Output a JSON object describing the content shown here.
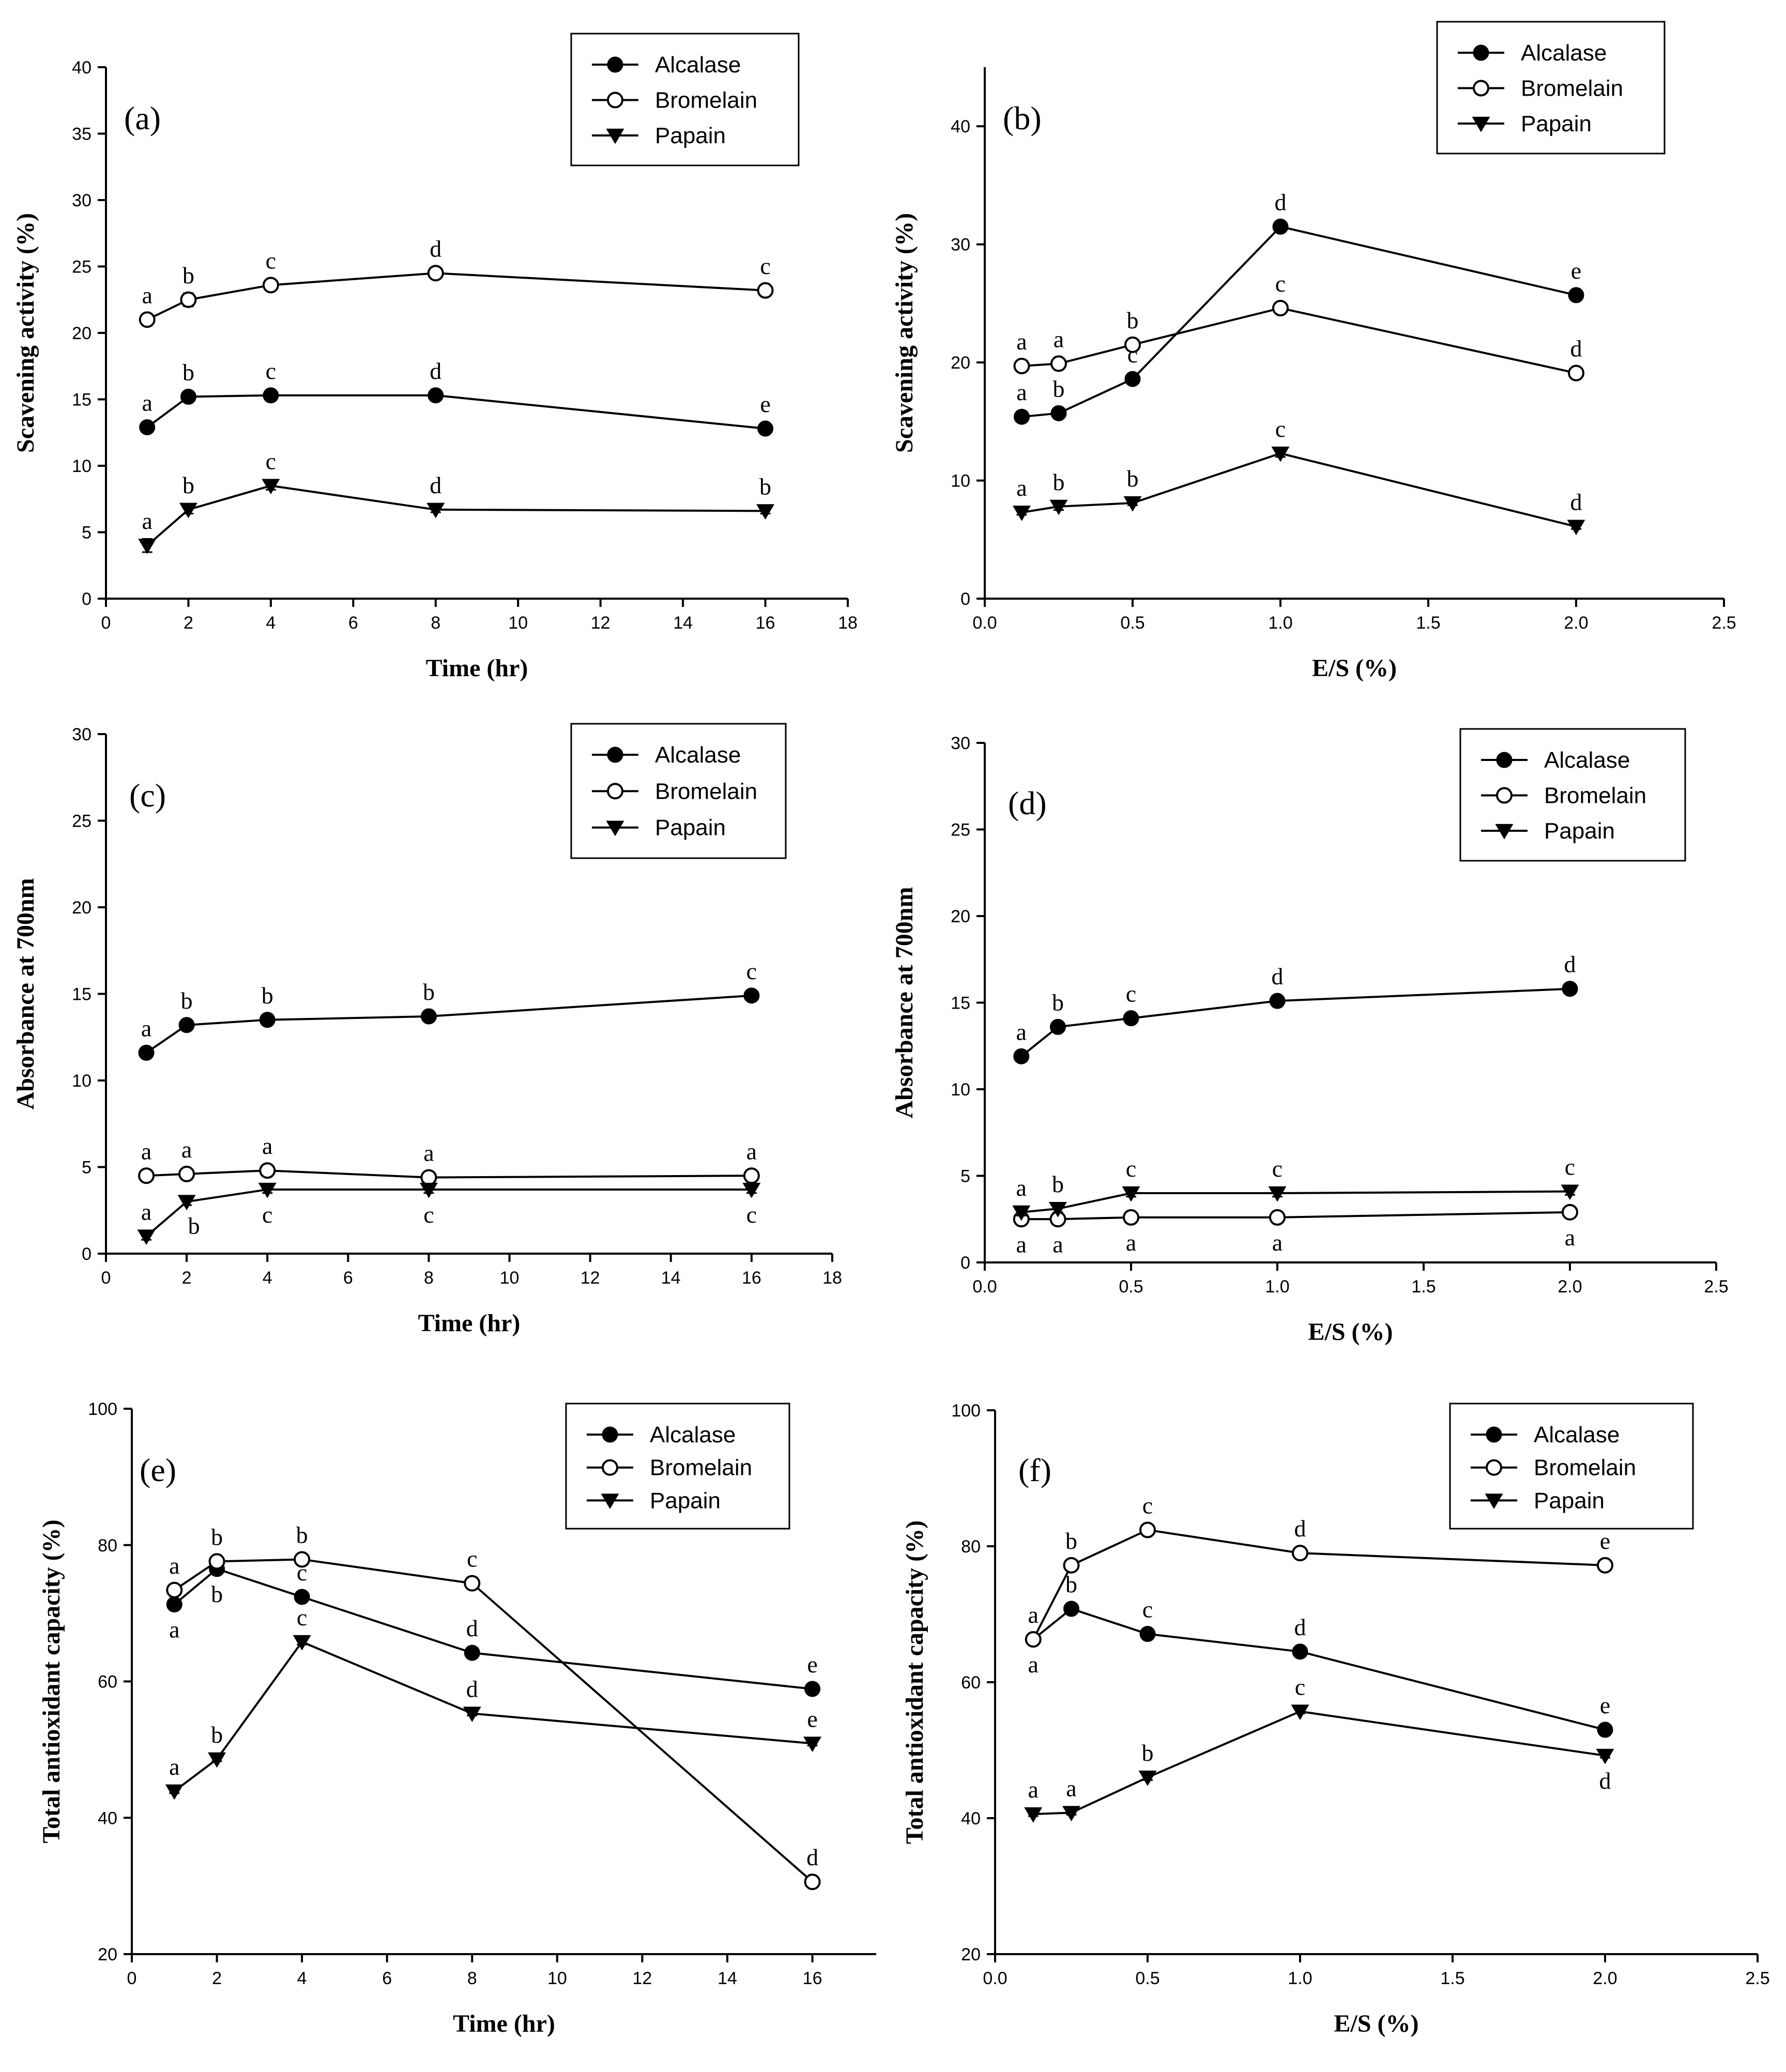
{
  "figure": {
    "legend_entries": [
      "Alcalase",
      "Bromelain",
      "Papain"
    ],
    "colors": {
      "line": "#000000",
      "background": "#ffffff"
    }
  },
  "chart_data": [
    {
      "id": "a",
      "type": "line",
      "panel_label": "(a)",
      "xlabel": "Time (hr)",
      "ylabel": "Scavening activity (%)",
      "xlim": [
        0,
        18
      ],
      "ylim": [
        0,
        40
      ],
      "xticks": [
        0,
        2,
        4,
        6,
        8,
        10,
        12,
        14,
        16,
        18
      ],
      "yticks": [
        0,
        5,
        10,
        15,
        20,
        25,
        30,
        35,
        40
      ],
      "x_decimals": 0,
      "legend_position": "top-right",
      "series": [
        {
          "name": "Alcalase",
          "marker": "filled-circle",
          "x": [
            1,
            2,
            4,
            8,
            16
          ],
          "values": [
            12.9,
            15.2,
            15.3,
            15.3,
            12.8
          ],
          "err": [
            0.3,
            0.3,
            0.2,
            0.2,
            0.2
          ],
          "labels": [
            "a",
            "b",
            "c",
            "d",
            "e"
          ],
          "label_pos": [
            "above",
            "above",
            "above",
            "above",
            "above"
          ]
        },
        {
          "name": "Bromelain",
          "marker": "open-circle",
          "x": [
            1,
            2,
            4,
            8,
            16
          ],
          "values": [
            21.0,
            22.5,
            23.6,
            24.5,
            23.2
          ],
          "err": [
            0.3,
            0.5,
            0.3,
            0.4,
            0.3
          ],
          "labels": [
            "a",
            "b",
            "c",
            "d",
            "c"
          ],
          "label_pos": [
            "above",
            "above",
            "above",
            "above",
            "above"
          ]
        },
        {
          "name": "Papain",
          "marker": "triangle-down",
          "x": [
            1,
            2,
            4,
            8,
            16
          ],
          "values": [
            4.0,
            6.7,
            8.5,
            6.7,
            6.6
          ],
          "err": [
            0.5,
            0.3,
            0.3,
            0.2,
            0.2
          ],
          "labels": [
            "a",
            "b",
            "c",
            "d",
            "b"
          ],
          "label_pos": [
            "above",
            "above",
            "above",
            "above",
            "above"
          ]
        }
      ]
    },
    {
      "id": "b",
      "type": "line",
      "panel_label": "(b)",
      "xlabel": "E/S (%)",
      "ylabel": "Scavening activity (%)",
      "xlim": [
        0,
        2.5
      ],
      "ylim": [
        0,
        45
      ],
      "xticks": [
        0.0,
        0.5,
        1.0,
        1.5,
        2.0,
        2.5
      ],
      "yticks": [
        0,
        10,
        20,
        30,
        40
      ],
      "x_decimals": 1,
      "legend_position": "top-right",
      "series": [
        {
          "name": "Alcalase",
          "marker": "filled-circle",
          "x": [
            0.125,
            0.25,
            0.5,
            1.0,
            2.0
          ],
          "values": [
            15.4,
            15.7,
            18.6,
            31.5,
            25.7
          ],
          "err": [
            0.2,
            0.2,
            0.4,
            0.2,
            0.3
          ],
          "labels": [
            "a",
            "b",
            "c",
            "d",
            "e"
          ],
          "label_pos": [
            "above",
            "above",
            "above",
            "above",
            "above"
          ]
        },
        {
          "name": "Bromelain",
          "marker": "open-circle",
          "x": [
            0.125,
            0.25,
            0.5,
            1.0,
            2.0
          ],
          "values": [
            19.7,
            19.9,
            21.5,
            24.6,
            19.1
          ],
          "err": [
            0.2,
            0.3,
            0.2,
            0.3,
            0.2
          ],
          "labels": [
            "a",
            "a",
            "b",
            "c",
            "d"
          ],
          "label_pos": [
            "above",
            "above",
            "above",
            "above",
            "above"
          ]
        },
        {
          "name": "Papain",
          "marker": "triangle-down",
          "x": [
            0.125,
            0.25,
            0.5,
            1.0,
            2.0
          ],
          "values": [
            7.3,
            7.8,
            8.1,
            12.3,
            6.1
          ],
          "err": [
            0.2,
            0.3,
            0.2,
            0.3,
            0.2
          ],
          "labels": [
            "a",
            "b",
            "b",
            "c",
            "d"
          ],
          "label_pos": [
            "above",
            "above",
            "above",
            "above",
            "above"
          ]
        }
      ]
    },
    {
      "id": "c",
      "type": "line",
      "panel_label": "(c)",
      "xlabel": "Time (hr)",
      "ylabel": "Absorbance at 700nm",
      "xlim": [
        0,
        18
      ],
      "ylim": [
        0,
        30
      ],
      "xticks": [
        0,
        2,
        4,
        6,
        8,
        10,
        12,
        14,
        16,
        18
      ],
      "yticks": [
        0,
        5,
        10,
        15,
        20,
        25,
        30
      ],
      "x_decimals": 0,
      "legend_position": "top-right",
      "series": [
        {
          "name": "Alcalase",
          "marker": "filled-circle",
          "x": [
            1,
            2,
            4,
            8,
            16
          ],
          "values": [
            11.6,
            13.2,
            13.5,
            13.7,
            14.9
          ],
          "err": [
            0.2,
            0.3,
            0.2,
            0.2,
            0.2
          ],
          "labels": [
            "a",
            "b",
            "b",
            "b",
            "c"
          ],
          "label_pos": [
            "above",
            "above",
            "above",
            "above",
            "above"
          ]
        },
        {
          "name": "Bromelain",
          "marker": "open-circle",
          "x": [
            1,
            2,
            4,
            8,
            16
          ],
          "values": [
            4.5,
            4.6,
            4.8,
            4.4,
            4.5
          ],
          "err": [
            0.2,
            0.2,
            0.2,
            0.2,
            0.2
          ],
          "labels": [
            "a",
            "a",
            "a",
            "a",
            "a"
          ],
          "label_pos": [
            "above",
            "above",
            "above",
            "above",
            "above"
          ]
        },
        {
          "name": "Papain",
          "marker": "triangle-down",
          "x": [
            1,
            2,
            4,
            8,
            16
          ],
          "values": [
            1.0,
            3.0,
            3.7,
            3.7,
            3.7
          ],
          "err": [
            0.2,
            0.2,
            0.2,
            0.2,
            0.2
          ],
          "labels": [
            "a",
            "b",
            "c",
            "c",
            "c"
          ],
          "label_pos": [
            "above",
            "right-below",
            "below",
            "below",
            "below"
          ]
        }
      ]
    },
    {
      "id": "d",
      "type": "line",
      "panel_label": "(d)",
      "xlabel": "E/S (%)",
      "ylabel": "Absorbance at 700nm",
      "xlim": [
        0,
        2.5
      ],
      "ylim": [
        0,
        30
      ],
      "xticks": [
        0.0,
        0.5,
        1.0,
        1.5,
        2.0,
        2.5
      ],
      "yticks": [
        0,
        5,
        10,
        15,
        20,
        25,
        30
      ],
      "x_decimals": 1,
      "legend_position": "top-right",
      "series": [
        {
          "name": "Alcalase",
          "marker": "filled-circle",
          "x": [
            0.125,
            0.25,
            0.5,
            1.0,
            2.0
          ],
          "values": [
            11.9,
            13.6,
            14.1,
            15.1,
            15.8
          ],
          "err": [
            0.2,
            0.2,
            0.2,
            0.2,
            0.2
          ],
          "labels": [
            "a",
            "b",
            "c",
            "d",
            "d"
          ],
          "label_pos": [
            "above",
            "above",
            "above",
            "above",
            "above"
          ]
        },
        {
          "name": "Bromelain",
          "marker": "open-circle",
          "x": [
            0.125,
            0.25,
            0.5,
            1.0,
            2.0
          ],
          "values": [
            2.5,
            2.5,
            2.6,
            2.6,
            2.9
          ],
          "err": [
            0.2,
            0.2,
            0.2,
            0.2,
            0.2
          ],
          "labels": [
            "a",
            "a",
            "a",
            "a",
            "a"
          ],
          "label_pos": [
            "below",
            "below",
            "below",
            "below",
            "below"
          ]
        },
        {
          "name": "Papain",
          "marker": "triangle-down",
          "x": [
            0.125,
            0.25,
            0.5,
            1.0,
            2.0
          ],
          "values": [
            2.9,
            3.1,
            4.0,
            4.0,
            4.1
          ],
          "err": [
            0.2,
            0.2,
            0.2,
            0.2,
            0.2
          ],
          "labels": [
            "a",
            "b",
            "c",
            "c",
            "c"
          ],
          "label_pos": [
            "above",
            "above",
            "above",
            "above",
            "above"
          ]
        }
      ]
    },
    {
      "id": "e",
      "type": "line",
      "panel_label": "(e)",
      "xlabel": "Time (hr)",
      "ylabel": "Total antioxidant capacity (%)",
      "xlim": [
        0,
        17.5
      ],
      "ylim": [
        20,
        100
      ],
      "xticks": [
        0,
        2,
        4,
        6,
        8,
        10,
        12,
        14,
        16
      ],
      "yticks": [
        20,
        40,
        60,
        80,
        100
      ],
      "x_decimals": 0,
      "legend_position": "top-right",
      "series": [
        {
          "name": "Alcalase",
          "marker": "filled-circle",
          "x": [
            1,
            2,
            4,
            8,
            16
          ],
          "values": [
            71.3,
            76.5,
            72.4,
            64.2,
            58.9
          ],
          "err": [
            0.4,
            0.4,
            0.3,
            0.3,
            0.3
          ],
          "labels": [
            "a",
            "b",
            "c",
            "d",
            "e"
          ],
          "label_pos": [
            "below",
            "below",
            "above",
            "above",
            "above"
          ]
        },
        {
          "name": "Bromelain",
          "marker": "open-circle",
          "x": [
            1,
            2,
            4,
            8,
            16
          ],
          "values": [
            73.4,
            77.6,
            77.9,
            74.4,
            30.6
          ],
          "err": [
            0.3,
            0.4,
            0.3,
            0.3,
            0.4
          ],
          "labels": [
            "a",
            "b",
            "b",
            "c",
            "d"
          ],
          "label_pos": [
            "above",
            "above",
            "above",
            "above",
            "above"
          ]
        },
        {
          "name": "Papain",
          "marker": "triangle-down",
          "x": [
            1,
            2,
            4,
            8,
            16
          ],
          "values": [
            43.9,
            48.6,
            65.8,
            55.3,
            50.9
          ],
          "err": [
            0.3,
            0.3,
            0.4,
            0.3,
            0.3
          ],
          "labels": [
            "a",
            "b",
            "c",
            "d",
            "e"
          ],
          "label_pos": [
            "above",
            "above",
            "above",
            "above",
            "above"
          ]
        }
      ]
    },
    {
      "id": "f",
      "type": "line",
      "panel_label": "(f)",
      "xlabel": "E/S (%)",
      "ylabel": "Total antioxidant capacity (%)",
      "xlim": [
        0,
        2.5
      ],
      "ylim": [
        20,
        100
      ],
      "xticks": [
        0.0,
        0.5,
        1.0,
        1.5,
        2.0,
        2.5
      ],
      "yticks": [
        20,
        40,
        60,
        80,
        100
      ],
      "x_decimals": 1,
      "legend_position": "top-right",
      "series": [
        {
          "name": "Alcalase",
          "marker": "filled-circle",
          "x": [
            0.125,
            0.25,
            0.5,
            1.0,
            2.0
          ],
          "values": [
            66.3,
            70.8,
            67.1,
            64.5,
            53.0
          ],
          "err": [
            0.4,
            0.3,
            0.3,
            0.3,
            0.3
          ],
          "labels": [
            "a",
            "b",
            "c",
            "d",
            "e"
          ],
          "label_pos": [
            "below",
            "above",
            "above",
            "above",
            "above"
          ]
        },
        {
          "name": "Bromelain",
          "marker": "open-circle",
          "x": [
            0.125,
            0.25,
            0.5,
            1.0,
            2.0
          ],
          "values": [
            66.3,
            77.2,
            82.4,
            79.0,
            77.2
          ],
          "err": [
            0.3,
            0.3,
            0.3,
            0.3,
            0.3
          ],
          "labels": [
            "a",
            "b",
            "c",
            "d",
            "e"
          ],
          "label_pos": [
            "above",
            "above",
            "above",
            "above",
            "above"
          ]
        },
        {
          "name": "Papain",
          "marker": "triangle-down",
          "x": [
            0.125,
            0.25,
            0.5,
            1.0,
            2.0
          ],
          "values": [
            40.6,
            40.8,
            46.0,
            55.7,
            49.2
          ],
          "err": [
            0.3,
            0.3,
            0.4,
            0.3,
            0.3
          ],
          "labels": [
            "a",
            "a",
            "b",
            "c",
            "d"
          ],
          "label_pos": [
            "above",
            "above",
            "above",
            "above",
            "below"
          ]
        }
      ]
    }
  ]
}
